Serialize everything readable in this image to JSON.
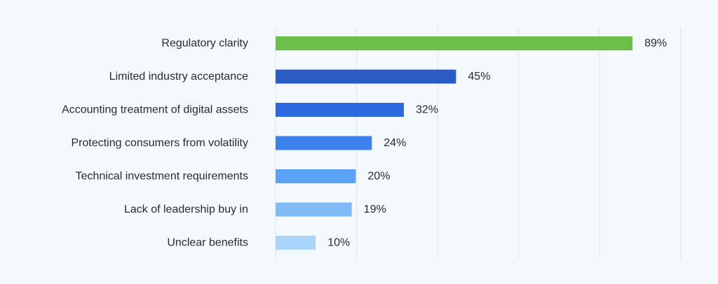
{
  "chart_data": {
    "type": "bar",
    "orientation": "horizontal",
    "categories": [
      "Regulatory clarity",
      "Limited industry acceptance",
      "Accounting treatment of digital assets",
      "Protecting consumers from volatility",
      "Technical investment requirements",
      "Lack of leadership buy in",
      "Unclear benefits"
    ],
    "values": [
      89,
      45,
      32,
      24,
      20,
      19,
      10
    ],
    "value_labels": [
      "89%",
      "45%",
      "32%",
      "24%",
      "20%",
      "19%",
      "10%"
    ],
    "bar_colors": [
      "#6cc04a",
      "#2a5cc6",
      "#2e68de",
      "#3b82ec",
      "#5aa2f4",
      "#80bbf7",
      "#a9d4fa"
    ],
    "xlim": [
      0,
      100
    ],
    "grid": true,
    "legend": "none"
  },
  "colors": {
    "background": "#f4f9fd",
    "gridline": "#dfe5ec",
    "text": "#2b2b2b",
    "highlight": "#6cc04a"
  }
}
